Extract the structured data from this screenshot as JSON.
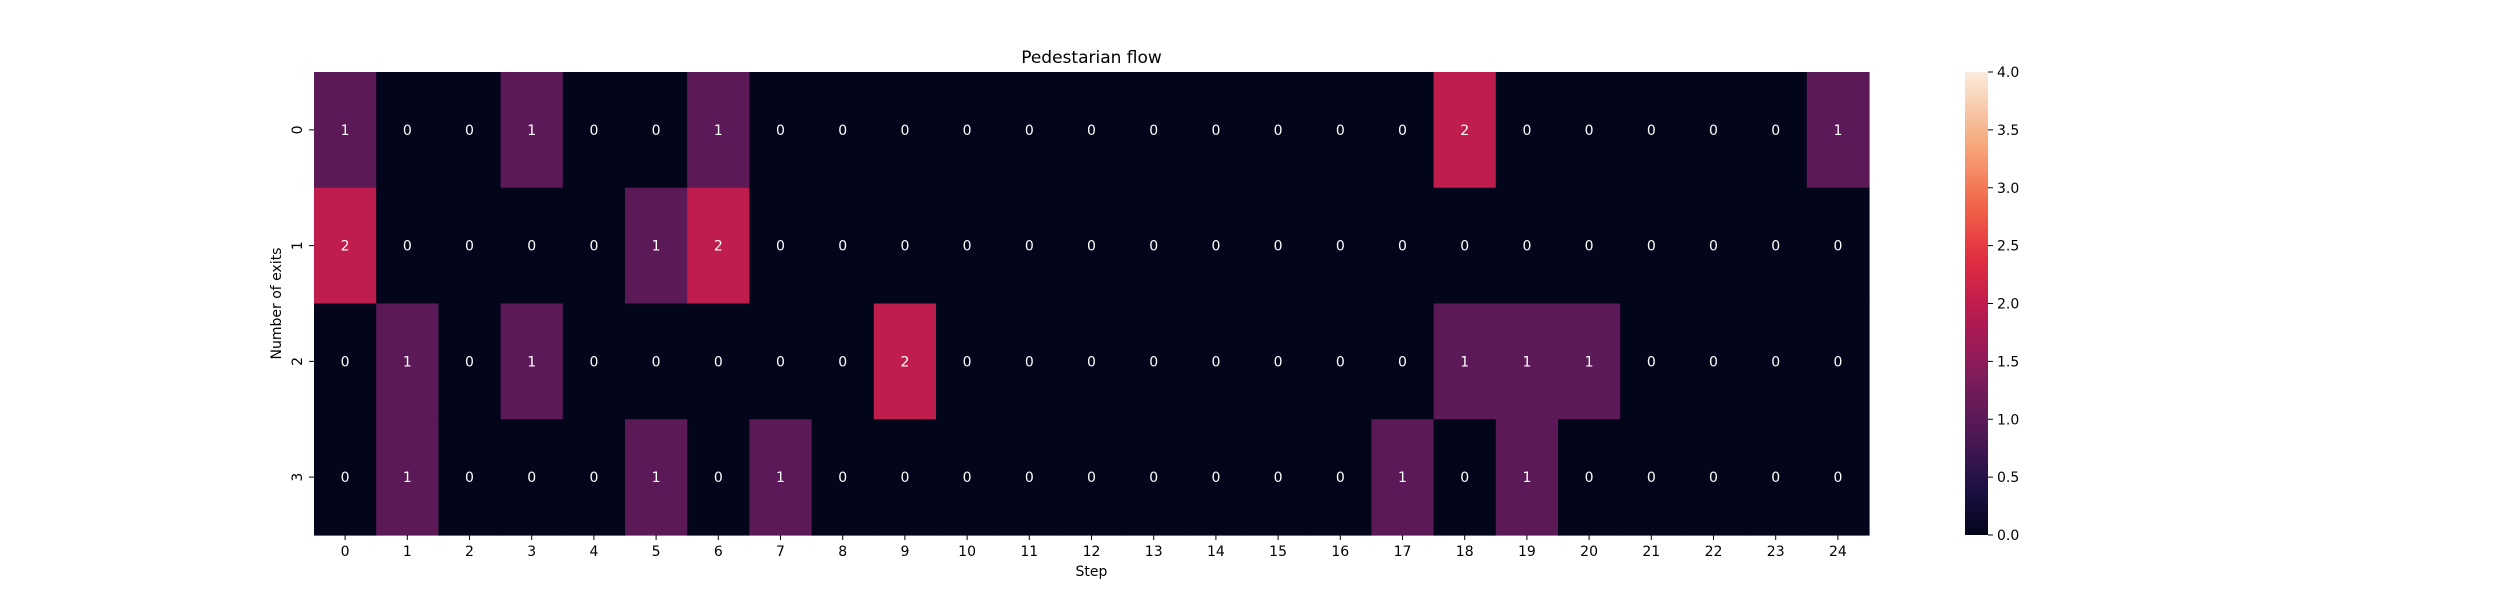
{
  "chart_data": {
    "type": "heatmap",
    "title": "Pedestarian flow",
    "xlabel": "Step",
    "ylabel": "Number of exits",
    "x_categories": [
      "0",
      "1",
      "2",
      "3",
      "4",
      "5",
      "6",
      "7",
      "8",
      "9",
      "10",
      "11",
      "12",
      "13",
      "14",
      "15",
      "16",
      "17",
      "18",
      "19",
      "20",
      "21",
      "22",
      "23",
      "24"
    ],
    "y_categories": [
      "0",
      "1",
      "2",
      "3"
    ],
    "values": [
      [
        1,
        0,
        0,
        1,
        0,
        0,
        1,
        0,
        0,
        0,
        0,
        0,
        0,
        0,
        0,
        0,
        0,
        0,
        2,
        0,
        0,
        0,
        0,
        0,
        1
      ],
      [
        2,
        0,
        0,
        0,
        0,
        1,
        2,
        0,
        0,
        0,
        0,
        0,
        0,
        0,
        0,
        0,
        0,
        0,
        0,
        0,
        0,
        0,
        0,
        0,
        0
      ],
      [
        0,
        1,
        0,
        1,
        0,
        0,
        0,
        0,
        0,
        2,
        0,
        0,
        0,
        0,
        0,
        0,
        0,
        0,
        1,
        1,
        1,
        0,
        0,
        0,
        0
      ],
      [
        0,
        1,
        0,
        0,
        0,
        1,
        0,
        1,
        0,
        0,
        0,
        0,
        0,
        0,
        0,
        0,
        0,
        1,
        0,
        1,
        0,
        0,
        0,
        0,
        0
      ]
    ],
    "vmin": 0,
    "vmax": 4,
    "colorbar_ticks": [
      "0.0",
      "0.5",
      "1.0",
      "1.5",
      "2.0",
      "2.5",
      "3.0",
      "3.5",
      "4.0"
    ],
    "colormap": "rocket",
    "annotations": true,
    "grid": false
  }
}
